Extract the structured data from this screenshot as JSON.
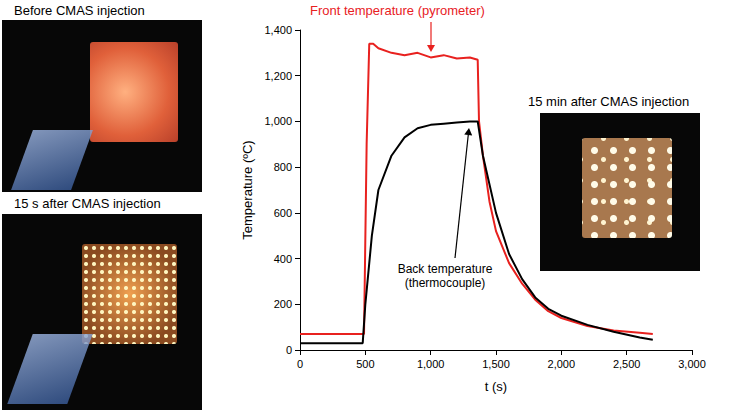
{
  "chart_data": {
    "type": "line",
    "xlabel": "t (s)",
    "ylabel": "Temperature (ºC)",
    "xlim": [
      0,
      3000
    ],
    "xticks": [
      0,
      500,
      1000,
      1500,
      2000,
      2500,
      3000
    ],
    "ylim": [
      0,
      1400
    ],
    "yticks": [
      0,
      200,
      400,
      600,
      800,
      1000,
      1200,
      1400
    ],
    "grid": false,
    "series": [
      {
        "name": "Front temperature (pyrometer)",
        "color": "#e8211f",
        "x": [
          0,
          490,
          510,
          530,
          560,
          600,
          700,
          800,
          900,
          1000,
          1100,
          1200,
          1300,
          1360,
          1370,
          1400,
          1450,
          1500,
          1600,
          1700,
          1800,
          1900,
          2000,
          2200,
          2400,
          2600,
          2700
        ],
        "values": [
          70,
          70,
          900,
          1340,
          1340,
          1320,
          1300,
          1290,
          1300,
          1280,
          1290,
          1275,
          1280,
          1270,
          1000,
          850,
          650,
          520,
          380,
          290,
          220,
          170,
          140,
          105,
          85,
          75,
          70
        ]
      },
      {
        "name": "Back temperature (thermocouple)",
        "color": "#000000",
        "x": [
          0,
          480,
          500,
          550,
          600,
          700,
          800,
          900,
          1000,
          1100,
          1200,
          1300,
          1360,
          1400,
          1500,
          1600,
          1700,
          1800,
          1900,
          2000,
          2200,
          2400,
          2600,
          2700
        ],
        "values": [
          30,
          30,
          200,
          500,
          700,
          850,
          930,
          970,
          985,
          990,
          995,
          1000,
          1000,
          850,
          600,
          420,
          310,
          230,
          180,
          150,
          110,
          80,
          55,
          45
        ]
      }
    ]
  },
  "photos": [
    {
      "caption": "Before CMAS injection"
    },
    {
      "caption": "15 s after CMAS injection"
    },
    {
      "caption": "15 min after CMAS injection"
    }
  ]
}
